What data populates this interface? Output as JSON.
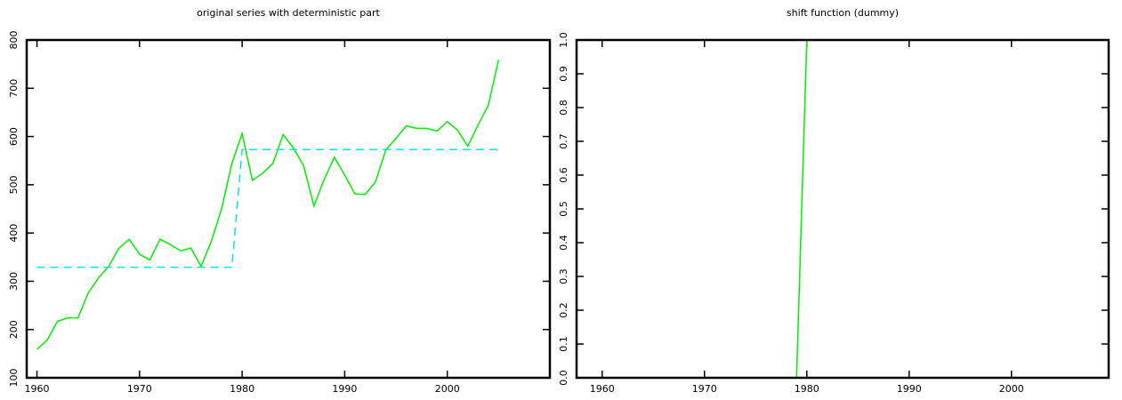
{
  "chart_data": [
    {
      "type": "line",
      "title": "original series with deterministic part",
      "x": [
        1960,
        1961,
        1962,
        1963,
        1964,
        1965,
        1966,
        1967,
        1968,
        1969,
        1970,
        1971,
        1972,
        1973,
        1974,
        1975,
        1976,
        1977,
        1978,
        1979,
        1980,
        1981,
        1982,
        1983,
        1984,
        1985,
        1986,
        1987,
        1988,
        1989,
        1990,
        1991,
        1992,
        1993,
        1994,
        1995,
        1996,
        1997,
        1998,
        1999,
        2000,
        2001,
        2002,
        2003,
        2004,
        2005
      ],
      "series": [
        {
          "color": "#00ee00",
          "dashed": false,
          "values": [
            159,
            178,
            217,
            224,
            224,
            276,
            307,
            331,
            369,
            387,
            356,
            344,
            387,
            376,
            363,
            369,
            331,
            383,
            450,
            544,
            606,
            509,
            524,
            544,
            604,
            576,
            539,
            456,
            511,
            557,
            520,
            481,
            480,
            506,
            572,
            596,
            622,
            617,
            617,
            611,
            631,
            613,
            580,
            624,
            665,
            759
          ]
        },
        {
          "color": "#00e5ee",
          "dashed": true,
          "values": [
            329,
            329,
            329,
            329,
            329,
            329,
            329,
            329,
            329,
            329,
            329,
            329,
            329,
            329,
            329,
            329,
            329,
            329,
            329,
            329,
            573,
            573,
            573,
            573,
            573,
            573,
            573,
            573,
            573,
            573,
            573,
            573,
            573,
            573,
            573,
            573,
            573,
            573,
            573,
            573,
            573,
            573,
            573,
            573,
            573,
            573
          ]
        }
      ],
      "xlim": [
        1959,
        2010
      ],
      "xticks": [
        1960,
        1970,
        1980,
        1990,
        2000
      ],
      "ylim": [
        100,
        800
      ],
      "yticks": [
        100,
        200,
        300,
        400,
        500,
        600,
        700,
        800
      ]
    },
    {
      "type": "line",
      "title": "shift function (dummy)",
      "x": [
        1960,
        1961,
        1962,
        1963,
        1964,
        1965,
        1966,
        1967,
        1968,
        1969,
        1970,
        1971,
        1972,
        1973,
        1974,
        1975,
        1976,
        1977,
        1978,
        1979,
        1980,
        1981,
        1982,
        1983,
        1984,
        1985,
        1986,
        1987,
        1988,
        1989,
        1990,
        1991,
        1992,
        1993,
        1994,
        1995,
        1996,
        1997,
        1998,
        1999,
        2000,
        2001,
        2002,
        2003,
        2004,
        2005
      ],
      "series": [
        {
          "color": "#00ee00",
          "dashed": false,
          "values": [
            0,
            0,
            0,
            0,
            0,
            0,
            0,
            0,
            0,
            0,
            0,
            0,
            0,
            0,
            0,
            0,
            0,
            0,
            0,
            0,
            1,
            1,
            1,
            1,
            1,
            1,
            1,
            1,
            1,
            1,
            1,
            1,
            1,
            1,
            1,
            1,
            1,
            1,
            1,
            1,
            1,
            1,
            1,
            1,
            1,
            1
          ]
        }
      ],
      "xlim": [
        1957.5,
        2009.5
      ],
      "xticks": [
        1960,
        1970,
        1980,
        1990,
        2000
      ],
      "ylim": [
        0,
        1
      ],
      "yticks": [
        {
          "value": 0,
          "label": "0.0"
        },
        0.1,
        0.2,
        0.3,
        0.4,
        0.5,
        0.6,
        0.7,
        0.8,
        0.9,
        {
          "value": 1,
          "label": "1.0"
        }
      ]
    }
  ]
}
